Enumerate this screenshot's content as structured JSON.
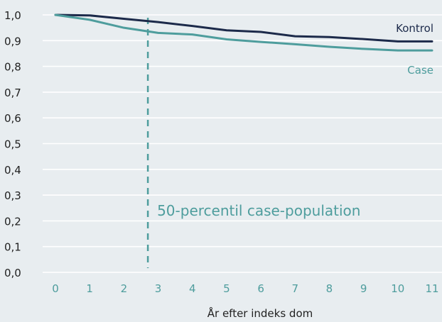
{
  "chart_data": {
    "type": "line",
    "title": "",
    "xlabel": "År efter indeks dom",
    "ylabel": "",
    "x": [
      0,
      1,
      2,
      3,
      4,
      5,
      6,
      7,
      8,
      9,
      10,
      11
    ],
    "x_tick_labels": [
      "0",
      "1",
      "2",
      "3",
      "4",
      "5",
      "6",
      "7",
      "8",
      "9",
      "10",
      "11"
    ],
    "y_tick_labels": [
      "0,0",
      "0,1",
      "0,2",
      "0,3",
      "0,4",
      "0,5",
      "0,6",
      "0,7",
      "0,8",
      "0,9",
      "1,0"
    ],
    "y_ticks": [
      0,
      0.1,
      0.2,
      0.3,
      0.4,
      0.5,
      0.6,
      0.7,
      0.8,
      0.9,
      1.0
    ],
    "xlim": [
      0,
      11
    ],
    "ylim": [
      0,
      1.0
    ],
    "grid": true,
    "grid_axis": "y",
    "series": [
      {
        "name": "Kontrol",
        "color": "#1c2a4a",
        "values": [
          1.0,
          0.998,
          0.985,
          0.972,
          0.957,
          0.94,
          0.934,
          0.917,
          0.914,
          0.906,
          0.897,
          0.897
        ]
      },
      {
        "name": "Case",
        "color": "#4e9d9d",
        "values": [
          1.0,
          0.981,
          0.95,
          0.93,
          0.924,
          0.905,
          0.895,
          0.886,
          0.876,
          0.868,
          0.862,
          0.862
        ]
      }
    ],
    "annotations": [
      {
        "type": "vline",
        "x": 2.7,
        "style": "dashed",
        "color": "#4e9d9d",
        "label": "50-percentil case-population"
      }
    ]
  }
}
